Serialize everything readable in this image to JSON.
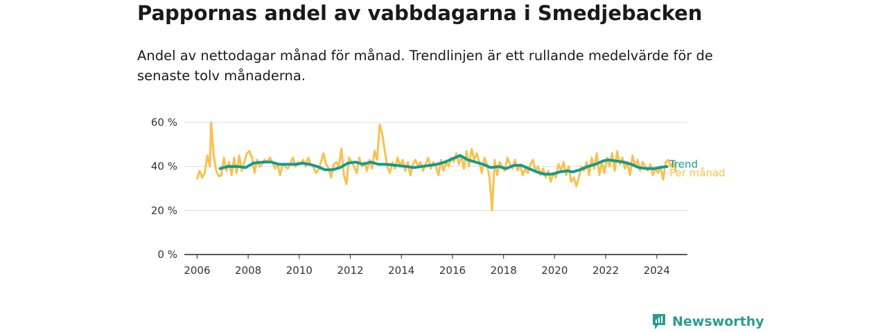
{
  "title": "Pappornas andel av vabbdagarna i Smedjebacken",
  "subtitle": "Andel av nettodagar månad för månad. Trendlinjen är ett rullande medelvärde för de senaste tolv månaderna.",
  "brand": {
    "name": "Newsworthy"
  },
  "colors": {
    "monthly": "#fbc04d",
    "trend": "#0f9b91",
    "grid": "#dddddd",
    "axis": "#222222"
  },
  "chart_data": {
    "type": "line",
    "title": "Pappornas andel av vabbdagarna i Smedjebacken",
    "xlabel": "",
    "ylabel": "",
    "xlim": [
      2005.5,
      2025.2
    ],
    "ylim": [
      0,
      60
    ],
    "y_ticks": [
      0,
      20,
      40,
      60
    ],
    "y_tick_labels": [
      "0 %",
      "20 %",
      "40 %",
      "60 %"
    ],
    "x_ticks": [
      2006,
      2008,
      2010,
      2012,
      2014,
      2016,
      2018,
      2020,
      2022,
      2024
    ],
    "x_tick_labels": [
      "2006",
      "2008",
      "2010",
      "2012",
      "2014",
      "2016",
      "2018",
      "2020",
      "2022",
      "2024"
    ],
    "grid": true,
    "series": [
      {
        "name": "Trend",
        "color": "#0f9b91",
        "points": [
          [
            2006.9,
            39
          ],
          [
            2007.2,
            40
          ],
          [
            2007.6,
            40
          ],
          [
            2007.9,
            39.5
          ],
          [
            2008.2,
            41.5
          ],
          [
            2008.6,
            42
          ],
          [
            2008.9,
            42
          ],
          [
            2009.2,
            41
          ],
          [
            2009.6,
            41
          ],
          [
            2009.9,
            41
          ],
          [
            2010.1,
            41.5
          ],
          [
            2010.4,
            41
          ],
          [
            2010.7,
            40
          ],
          [
            2011.0,
            38.5
          ],
          [
            2011.3,
            38.5
          ],
          [
            2011.6,
            39.5
          ],
          [
            2011.9,
            41.5
          ],
          [
            2012.2,
            42
          ],
          [
            2012.5,
            41
          ],
          [
            2012.8,
            42
          ],
          [
            2013.1,
            41
          ],
          [
            2013.4,
            41
          ],
          [
            2013.8,
            40.5
          ],
          [
            2014.2,
            40
          ],
          [
            2014.5,
            39.5
          ],
          [
            2014.8,
            40
          ],
          [
            2015.1,
            40.5
          ],
          [
            2015.4,
            41
          ],
          [
            2015.7,
            42
          ],
          [
            2016.0,
            43.5
          ],
          [
            2016.3,
            45
          ],
          [
            2016.6,
            43
          ],
          [
            2016.9,
            42
          ],
          [
            2017.2,
            41
          ],
          [
            2017.5,
            39.5
          ],
          [
            2017.8,
            40
          ],
          [
            2018.1,
            39
          ],
          [
            2018.4,
            40.5
          ],
          [
            2018.7,
            40.5
          ],
          [
            2019.0,
            39
          ],
          [
            2019.3,
            37.5
          ],
          [
            2019.6,
            36.5
          ],
          [
            2019.9,
            36.5
          ],
          [
            2020.2,
            37.5
          ],
          [
            2020.5,
            38
          ],
          [
            2020.7,
            37.5
          ],
          [
            2021.0,
            38.5
          ],
          [
            2021.3,
            40
          ],
          [
            2021.6,
            41
          ],
          [
            2021.9,
            42.5
          ],
          [
            2022.1,
            43
          ],
          [
            2022.4,
            42.5
          ],
          [
            2022.7,
            42
          ],
          [
            2023.0,
            41
          ],
          [
            2023.3,
            39.5
          ],
          [
            2023.6,
            39
          ],
          [
            2023.9,
            39
          ],
          [
            2024.1,
            39.5
          ],
          [
            2024.4,
            40
          ]
        ]
      },
      {
        "name": "Per månad",
        "color": "#fbc04d",
        "points": [
          [
            2006.0,
            34.5
          ],
          [
            2006.1,
            38
          ],
          [
            2006.2,
            35
          ],
          [
            2006.3,
            37
          ],
          [
            2006.4,
            45
          ],
          [
            2006.5,
            40
          ],
          [
            2006.55,
            60
          ],
          [
            2006.65,
            45
          ],
          [
            2006.75,
            38
          ],
          [
            2006.85,
            35.5
          ],
          [
            2006.95,
            36
          ],
          [
            2007.05,
            44
          ],
          [
            2007.15,
            38
          ],
          [
            2007.25,
            42
          ],
          [
            2007.35,
            36
          ],
          [
            2007.45,
            44
          ],
          [
            2007.55,
            37
          ],
          [
            2007.65,
            45
          ],
          [
            2007.75,
            38
          ],
          [
            2007.85,
            42
          ],
          [
            2007.95,
            46
          ],
          [
            2008.05,
            47
          ],
          [
            2008.15,
            44
          ],
          [
            2008.25,
            37
          ],
          [
            2008.35,
            43
          ],
          [
            2008.45,
            40
          ],
          [
            2008.55,
            41
          ],
          [
            2008.65,
            43
          ],
          [
            2008.75,
            42
          ],
          [
            2008.85,
            44
          ],
          [
            2008.95,
            42
          ],
          [
            2009.05,
            39
          ],
          [
            2009.15,
            41
          ],
          [
            2009.25,
            36
          ],
          [
            2009.35,
            41
          ],
          [
            2009.45,
            40
          ],
          [
            2009.55,
            39
          ],
          [
            2009.65,
            41
          ],
          [
            2009.75,
            44
          ],
          [
            2009.85,
            40
          ],
          [
            2009.95,
            42
          ],
          [
            2010.05,
            41
          ],
          [
            2010.15,
            43
          ],
          [
            2010.25,
            40
          ],
          [
            2010.35,
            44
          ],
          [
            2010.45,
            41
          ],
          [
            2010.55,
            40
          ],
          [
            2010.65,
            37
          ],
          [
            2010.75,
            38.5
          ],
          [
            2010.85,
            42
          ],
          [
            2010.95,
            46
          ],
          [
            2011.05,
            41
          ],
          [
            2011.15,
            39
          ],
          [
            2011.25,
            35
          ],
          [
            2011.35,
            41
          ],
          [
            2011.45,
            42
          ],
          [
            2011.55,
            40
          ],
          [
            2011.65,
            48
          ],
          [
            2011.75,
            36
          ],
          [
            2011.85,
            32
          ],
          [
            2011.95,
            44
          ],
          [
            2012.05,
            42
          ],
          [
            2012.15,
            40
          ],
          [
            2012.25,
            37
          ],
          [
            2012.35,
            44
          ],
          [
            2012.45,
            40
          ],
          [
            2012.55,
            42
          ],
          [
            2012.65,
            38
          ],
          [
            2012.75,
            43
          ],
          [
            2012.85,
            39
          ],
          [
            2012.95,
            47
          ],
          [
            2013.05,
            43
          ],
          [
            2013.15,
            59
          ],
          [
            2013.25,
            55
          ],
          [
            2013.35,
            47
          ],
          [
            2013.45,
            40
          ],
          [
            2013.55,
            37
          ],
          [
            2013.65,
            42
          ],
          [
            2013.75,
            39
          ],
          [
            2013.85,
            44
          ],
          [
            2013.95,
            40
          ],
          [
            2014.05,
            43
          ],
          [
            2014.15,
            38
          ],
          [
            2014.25,
            42
          ],
          [
            2014.35,
            36
          ],
          [
            2014.45,
            41
          ],
          [
            2014.55,
            43
          ],
          [
            2014.65,
            40
          ],
          [
            2014.75,
            42
          ],
          [
            2014.85,
            38
          ],
          [
            2014.95,
            41
          ],
          [
            2015.05,
            44
          ],
          [
            2015.15,
            39
          ],
          [
            2015.25,
            42
          ],
          [
            2015.35,
            40
          ],
          [
            2015.45,
            36
          ],
          [
            2015.55,
            43
          ],
          [
            2015.65,
            38
          ],
          [
            2015.75,
            42
          ],
          [
            2015.85,
            40
          ],
          [
            2015.95,
            44
          ],
          [
            2016.05,
            42
          ],
          [
            2016.15,
            46
          ],
          [
            2016.25,
            41
          ],
          [
            2016.35,
            45
          ],
          [
            2016.45,
            39
          ],
          [
            2016.55,
            47
          ],
          [
            2016.65,
            40
          ],
          [
            2016.75,
            48
          ],
          [
            2016.85,
            43
          ],
          [
            2016.95,
            46
          ],
          [
            2017.05,
            42
          ],
          [
            2017.15,
            37
          ],
          [
            2017.25,
            44
          ],
          [
            2017.35,
            41
          ],
          [
            2017.45,
            35
          ],
          [
            2017.55,
            20
          ],
          [
            2017.65,
            43
          ],
          [
            2017.75,
            36
          ],
          [
            2017.85,
            42
          ],
          [
            2017.95,
            40
          ],
          [
            2018.05,
            38
          ],
          [
            2018.15,
            44
          ],
          [
            2018.25,
            41
          ],
          [
            2018.35,
            39
          ],
          [
            2018.45,
            43
          ],
          [
            2018.55,
            38
          ],
          [
            2018.65,
            41
          ],
          [
            2018.75,
            36
          ],
          [
            2018.85,
            39
          ],
          [
            2018.95,
            37
          ],
          [
            2019.05,
            41
          ],
          [
            2019.15,
            43
          ],
          [
            2019.25,
            38
          ],
          [
            2019.35,
            40
          ],
          [
            2019.45,
            36
          ],
          [
            2019.55,
            39
          ],
          [
            2019.65,
            35
          ],
          [
            2019.75,
            38
          ],
          [
            2019.85,
            33
          ],
          [
            2019.95,
            37
          ],
          [
            2020.05,
            35
          ],
          [
            2020.15,
            41
          ],
          [
            2020.25,
            38
          ],
          [
            2020.35,
            42
          ],
          [
            2020.45,
            36
          ],
          [
            2020.55,
            40
          ],
          [
            2020.65,
            33
          ],
          [
            2020.75,
            35
          ],
          [
            2020.85,
            31
          ],
          [
            2020.95,
            35
          ],
          [
            2021.05,
            40
          ],
          [
            2021.15,
            38
          ],
          [
            2021.25,
            42
          ],
          [
            2021.35,
            36
          ],
          [
            2021.45,
            44
          ],
          [
            2021.55,
            39
          ],
          [
            2021.65,
            46
          ],
          [
            2021.75,
            36
          ],
          [
            2021.85,
            42
          ],
          [
            2021.95,
            37
          ],
          [
            2022.05,
            44
          ],
          [
            2022.15,
            40
          ],
          [
            2022.25,
            46
          ],
          [
            2022.35,
            38
          ],
          [
            2022.45,
            47
          ],
          [
            2022.55,
            41
          ],
          [
            2022.65,
            44
          ],
          [
            2022.75,
            39
          ],
          [
            2022.85,
            42
          ],
          [
            2022.95,
            36
          ],
          [
            2023.05,
            45
          ],
          [
            2023.15,
            40
          ],
          [
            2023.25,
            43
          ],
          [
            2023.35,
            38
          ],
          [
            2023.45,
            42
          ],
          [
            2023.55,
            40
          ],
          [
            2023.65,
            38
          ],
          [
            2023.75,
            41
          ],
          [
            2023.85,
            36
          ],
          [
            2023.95,
            39
          ],
          [
            2024.05,
            37
          ],
          [
            2024.15,
            40
          ],
          [
            2024.25,
            34
          ],
          [
            2024.35,
            42
          ],
          [
            2024.45,
            43
          ],
          [
            2024.55,
            40
          ],
          [
            2024.65,
            42
          ],
          [
            2024.75,
            38
          ]
        ]
      }
    ]
  }
}
